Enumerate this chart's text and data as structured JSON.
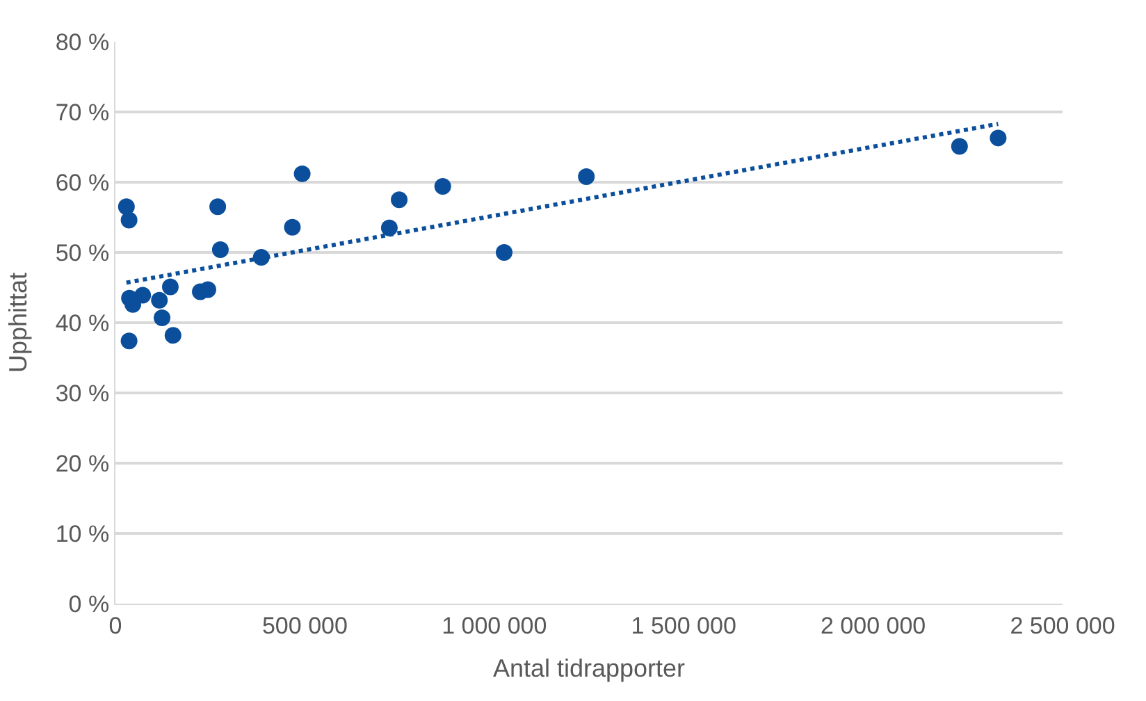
{
  "chart_data": {
    "type": "scatter",
    "xlabel": "Antal tidrapporter",
    "ylabel": "Upphittat",
    "grid": "y",
    "marker": "circle",
    "xlim": [
      0,
      2500000
    ],
    "ylim": [
      0,
      80
    ],
    "xticks": [
      0,
      {
        "value": 500000,
        "label": "500 000"
      },
      {
        "value": 1000000,
        "label": "1 000 000"
      },
      {
        "value": 1500000,
        "label": "1 500 000"
      },
      {
        "value": 2000000,
        "label": "2 000 000"
      },
      {
        "value": 2500000,
        "label": "2 500 000"
      }
    ],
    "yticks": [
      {
        "value": 0,
        "label": "0 %"
      },
      {
        "value": 10,
        "label": "10 %"
      },
      {
        "value": 20,
        "label": "20 %"
      },
      {
        "value": 30,
        "label": "30 %"
      },
      {
        "value": 40,
        "label": "40 %"
      },
      {
        "value": 50,
        "label": "50 %"
      },
      {
        "value": 60,
        "label": "60 %"
      },
      {
        "value": 70,
        "label": "70 %"
      },
      {
        "value": 80,
        "label": "80 %"
      }
    ],
    "series": [
      {
        "color": "#0b4f9c",
        "x": [
          29000,
          36000,
          270000,
          493000,
          467000,
          277000,
          385000,
          37000,
          46000,
          72000,
          116000,
          145000,
          123000,
          36000,
          152000,
          224000,
          244000,
          723000,
          749000,
          864000,
          1026000,
          1243000,
          2228000,
          2330000
        ],
        "values": [
          56.5,
          54.6,
          56.5,
          61.2,
          53.6,
          50.4,
          49.3,
          43.5,
          42.6,
          43.9,
          43.2,
          45.1,
          40.7,
          37.4,
          38.2,
          44.4,
          44.7,
          53.5,
          57.5,
          59.4,
          50.0,
          60.8,
          65.1,
          66.3
        ]
      },
      {
        "type": "line",
        "color": "#0b4f9c",
        "line_style": "dotted",
        "marker": "none",
        "x": [
          29000,
          2330000
        ],
        "values": [
          45.7,
          68.3
        ]
      }
    ]
  }
}
